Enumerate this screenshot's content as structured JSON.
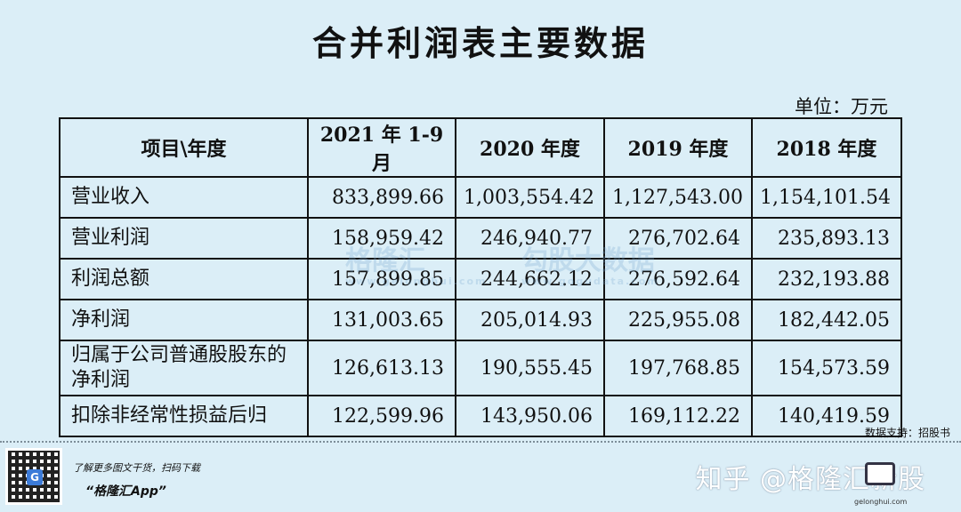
{
  "title": "合并利润表主要数据",
  "unit": "单位：万元",
  "table": {
    "headers": [
      "项目\\年度",
      "2021 年 1-9 月",
      "2020 年度",
      "2019 年度",
      "2018 年度"
    ],
    "rows": [
      {
        "label": "营业收入",
        "values": [
          "833,899.66",
          "1,003,554.42",
          "1,127,543.00",
          "1,154,101.54"
        ]
      },
      {
        "label": "营业利润",
        "values": [
          "158,959.42",
          "246,940.77",
          "276,702.64",
          "235,893.13"
        ]
      },
      {
        "label": "利润总额",
        "values": [
          "157,899.85",
          "244,662.12",
          "276,592.64",
          "232,193.88"
        ]
      },
      {
        "label": "净利润",
        "values": [
          "131,003.65",
          "205,014.93",
          "225,955.08",
          "182,442.05"
        ]
      },
      {
        "label": "归属于公司普通股股东的净利润",
        "values": [
          "126,613.13",
          "190,555.45",
          "197,768.85",
          "154,573.59"
        ]
      },
      {
        "label": "扣除非经常性损益后归",
        "values": [
          "122,599.96",
          "143,950.06",
          "169,112.22",
          "140,419.59"
        ]
      }
    ]
  },
  "watermark": {
    "brand1": "格隆汇",
    "brand1_url": "www.gelonghui.com",
    "brand2": "勾股大数据",
    "brand2_url": "www.gogudata.com"
  },
  "source": "数据支持：招股书",
  "footer": {
    "promo_line1": "了解更多图文干货，扫码下载",
    "promo_line2": "“格隆汇App”",
    "qr_center_glyph": "G",
    "zhihu_text": "知乎 @格隆汇新股",
    "corner_logo_text": "gelonghui.com"
  }
}
